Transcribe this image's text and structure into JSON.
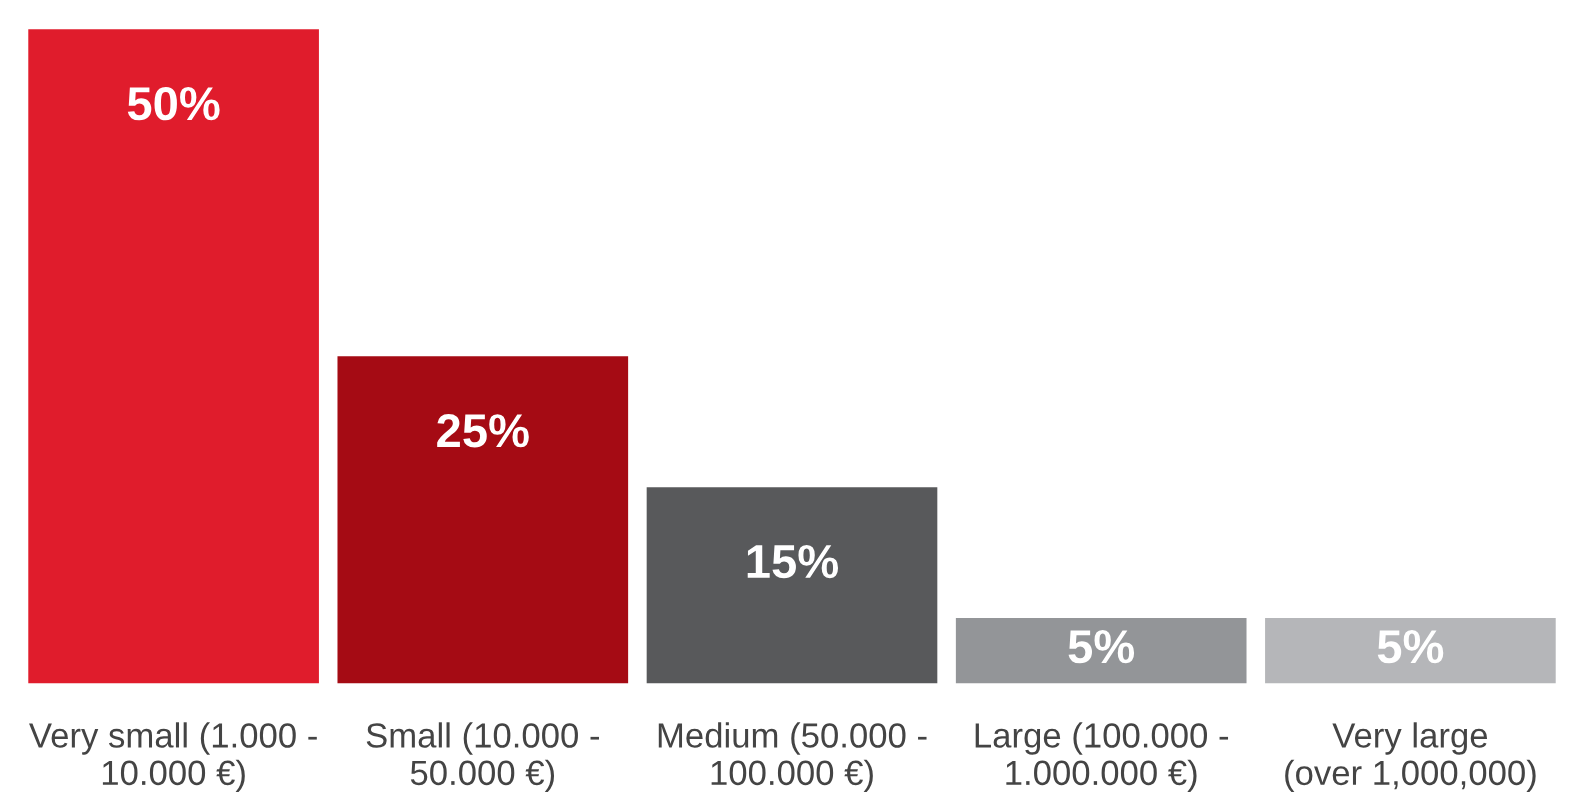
{
  "chart_data": {
    "type": "bar",
    "categories": [
      "Very small (1.000 -\n10.000 €)",
      "Small (10.000 -\n50.000 €)",
      "Medium (50.000 -\n100.000 €)",
      "Large (100.000 -\n1.000.000 €)",
      "Very large\n(over 1,000,000)"
    ],
    "values": [
      50,
      25,
      15,
      5,
      5
    ],
    "colors": [
      "#e01c2c",
      "#a50b14",
      "#58595b",
      "#939598",
      "#b5b6b9"
    ],
    "value_labels": [
      "50%",
      "25%",
      "15%",
      "5%",
      "5%"
    ],
    "grid": false
  }
}
